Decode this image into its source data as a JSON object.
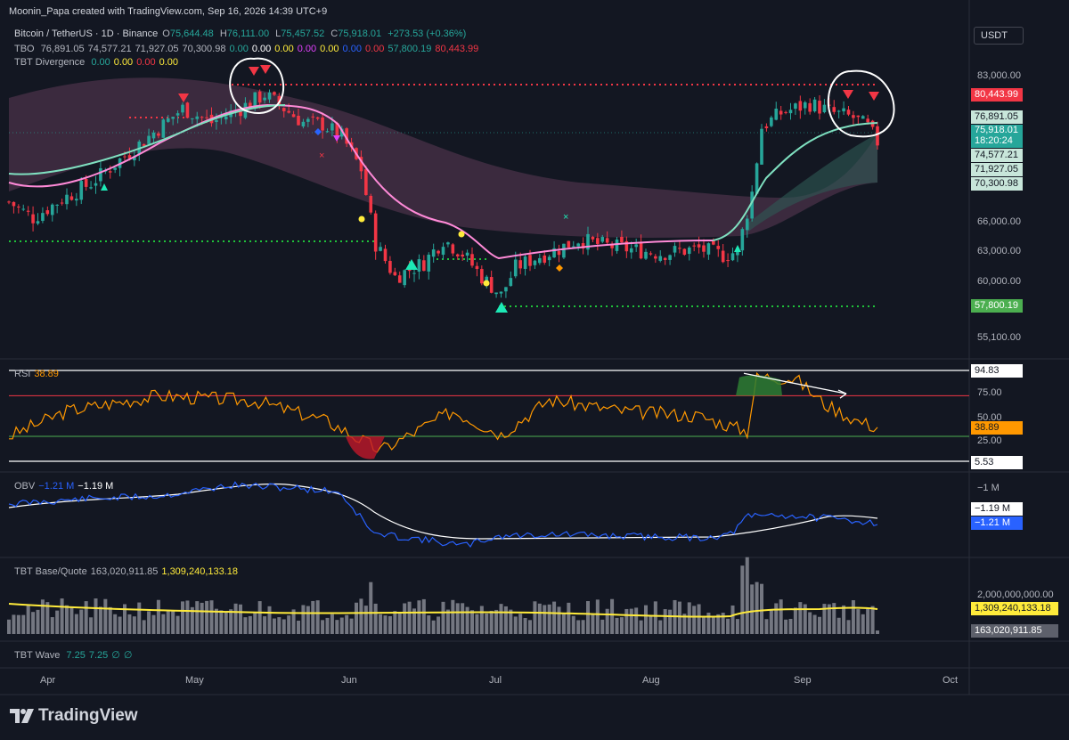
{
  "header": {
    "created_by": "Moonin_Papa created with TradingView.com, Sep 16, 2026 14:39 UTC+9"
  },
  "symbol": {
    "name": "Bitcoin / TetherUS · 1D · Binance",
    "o_label": "O",
    "o": "75,644.48",
    "h_label": "H",
    "h": "76,111.00",
    "l_label": "L",
    "l": "75,457.52",
    "c_label": "C",
    "c": "75,918.01",
    "change": "+273.53 (+0.36%)"
  },
  "currency_button": "USDT",
  "legend": {
    "tbo": {
      "label": "TBO",
      "values": [
        "76,891.05",
        "74,577.21",
        "71,927.05",
        "70,300.98",
        "0.00",
        "0.00",
        "0.00",
        "0.00",
        "0.00",
        "0.00",
        "0.00",
        "57,800.19",
        "80,443.99"
      ],
      "colors": [
        "#b2b5be",
        "#b2b5be",
        "#b2b5be",
        "#b2b5be",
        "#26a69a",
        "#ffffff",
        "#ffeb3b",
        "#e040fb",
        "#ffeb3b",
        "#2962ff",
        "#f23645",
        "#26a69a",
        "#f23645"
      ]
    },
    "div": {
      "label": "TBT Divergence",
      "values": [
        "0.00",
        "0.00",
        "0.00",
        "0.00"
      ],
      "colors": [
        "#26a69a",
        "#ffeb3b",
        "#f23645",
        "#ffeb3b"
      ]
    },
    "rsi": {
      "label": "RSI",
      "value": "38.89"
    },
    "obv": {
      "label": "OBV",
      "v1": "−1.21 M",
      "v2": "−1.19 M"
    },
    "bq": {
      "label": "TBT Base/Quote",
      "v1": "163,020,911.85",
      "v2": "1,309,240,133.18"
    },
    "wave": {
      "label": "TBT Wave",
      "values": [
        "7.25",
        "7.25",
        "∅",
        "∅"
      ]
    }
  },
  "price_axis": {
    "ticks": [
      "83,000.00",
      "66,000.00",
      "63,000.00",
      "60,000.00",
      "55,100.00"
    ]
  },
  "price_labels": {
    "l1": "80,443.99",
    "l2": "76,891.05",
    "l3a": "75,918.01",
    "l3b": "18:20:24",
    "l4": "74,577.21",
    "l5": "71,927.05",
    "l6": "70,300.98",
    "l7": "57,800.19"
  },
  "rsi_axis": {
    "ticks": [
      "75.00",
      "50.00",
      "25.00"
    ],
    "top_label": "94.83",
    "bottom_label": "5.53",
    "value_label": "38.89"
  },
  "obv_axis": {
    "tick": "−1 M",
    "l1": "−1.19 M",
    "l2": "−1.21 M"
  },
  "bq_axis": {
    "tick": "2,000,000,000.00",
    "l1": "1,309,240,133.18",
    "l2": "163,020,911.85"
  },
  "time_axis": [
    "Apr",
    "May",
    "Jun",
    "Jul",
    "Aug",
    "Sep",
    "Oct"
  ],
  "footer": {
    "brand": "TradingView"
  },
  "colors": {
    "bg": "#131722",
    "up": "#26a69a",
    "down": "#f23645",
    "ma_green": "#7fe0c0",
    "ma_pink": "#ff8ad8",
    "support": "#1fc23a",
    "resistance": "#f23645",
    "rsi": "#ff9800",
    "obv": "#2962ff",
    "bq_line": "#ffeb3b"
  },
  "chart_data": [
    {
      "type": "candlestick",
      "title": "Bitcoin / TetherUS · 1D · Binance",
      "x_range": [
        "Mar 20",
        "Sep 16"
      ],
      "x_ticks": [
        "Apr",
        "May",
        "Jun",
        "Jul",
        "Aug",
        "Sep",
        "Oct"
      ],
      "y_ticks": [
        83000,
        66000,
        63000,
        60000,
        55100
      ],
      "ohlc_last": {
        "open": 75644.48,
        "high": 76111.0,
        "low": 75457.52,
        "close": 75918.01
      },
      "close_path": [
        {
          "x": "Mar 20",
          "y": 69500
        },
        {
          "x": "Mar 25",
          "y": 67800
        },
        {
          "x": "Mar 31",
          "y": 69800
        },
        {
          "x": "Apr 6",
          "y": 71500
        },
        {
          "x": "Apr 12",
          "y": 74000
        },
        {
          "x": "Apr 18",
          "y": 76500
        },
        {
          "x": "Apr 25",
          "y": 79500
        },
        {
          "x": "May 1",
          "y": 78000
        },
        {
          "x": "May 7",
          "y": 79500
        },
        {
          "x": "May 12",
          "y": 81000
        },
        {
          "x": "May 16",
          "y": 79500
        },
        {
          "x": "May 20",
          "y": 78000
        },
        {
          "x": "May 24",
          "y": 77800
        },
        {
          "x": "May 28",
          "y": 76500
        },
        {
          "x": "Jun 1",
          "y": 73000
        },
        {
          "x": "Jun 4",
          "y": 65000
        },
        {
          "x": "Jun 8",
          "y": 61500
        },
        {
          "x": "Jun 14",
          "y": 63000
        },
        {
          "x": "Jun 18",
          "y": 65500
        },
        {
          "x": "Jun 22",
          "y": 64000
        },
        {
          "x": "Jun 26",
          "y": 61500
        },
        {
          "x": "Jun 30",
          "y": 59500
        },
        {
          "x": "Jul 3",
          "y": 62500
        },
        {
          "x": "Jul 7",
          "y": 63500
        },
        {
          "x": "Jul 12",
          "y": 64500
        },
        {
          "x": "Jul 16",
          "y": 65500
        },
        {
          "x": "Jul 20",
          "y": 65000
        },
        {
          "x": "Jul 26",
          "y": 64500
        },
        {
          "x": "Aug 2",
          "y": 64000
        },
        {
          "x": "Aug 10",
          "y": 64500
        },
        {
          "x": "Aug 15",
          "y": 63800
        },
        {
          "x": "Aug 18",
          "y": 64200
        },
        {
          "x": "Aug 21",
          "y": 70500
        },
        {
          "x": "Aug 23",
          "y": 77500
        },
        {
          "x": "Aug 27",
          "y": 79000
        },
        {
          "x": "Sep 2",
          "y": 80000
        },
        {
          "x": "Sep 7",
          "y": 79000
        },
        {
          "x": "Sep 11",
          "y": 78500
        },
        {
          "x": "Sep 14",
          "y": 77500
        },
        {
          "x": "Sep 16",
          "y": 75918.01
        }
      ],
      "levels": {
        "tbo_fast": 76891.05,
        "tbo_mid": 74577.21,
        "tbo_slow": 71927.05,
        "tbo_slowest": 70300.98,
        "support": 57800.19,
        "resistance": 80443.99
      }
    },
    {
      "type": "line",
      "title": "RSI",
      "y_range": [
        5.53,
        94.83
      ],
      "y_ticks": [
        75,
        50,
        25
      ],
      "last": 38.89,
      "values": [
        {
          "x": "Mar 20",
          "y": 30
        },
        {
          "x": "Apr 1",
          "y": 55
        },
        {
          "x": "Apr 20",
          "y": 70
        },
        {
          "x": "May 10",
          "y": 65
        },
        {
          "x": "May 25",
          "y": 45
        },
        {
          "x": "Jun 5",
          "y": 16
        },
        {
          "x": "Jun 12",
          "y": 34
        },
        {
          "x": "Jun 20",
          "y": 55
        },
        {
          "x": "Jun 30",
          "y": 32
        },
        {
          "x": "Jul 10",
          "y": 66
        },
        {
          "x": "Jul 25",
          "y": 55
        },
        {
          "x": "Aug 10",
          "y": 50
        },
        {
          "x": "Aug 20",
          "y": 35
        },
        {
          "x": "Aug 22",
          "y": 89
        },
        {
          "x": "Aug 30",
          "y": 87
        },
        {
          "x": "Sep 5",
          "y": 62
        },
        {
          "x": "Sep 12",
          "y": 45
        },
        {
          "x": "Sep 16",
          "y": 38.89
        }
      ]
    },
    {
      "type": "line",
      "title": "OBV",
      "series": [
        {
          "name": "−1.21 M",
          "last": -1.21
        },
        {
          "name": "−1.19 M",
          "last": -1.19
        }
      ],
      "y_ticks": [
        "−1 M"
      ]
    },
    {
      "type": "bar",
      "title": "TBT Base/Quote",
      "y_ticks": [
        2000000000
      ],
      "series": [
        {
          "name": "163,020,911.85",
          "last": 163020911.85
        },
        {
          "name": "1,309,240,133.18",
          "last": 1309240133.18
        }
      ]
    }
  ]
}
